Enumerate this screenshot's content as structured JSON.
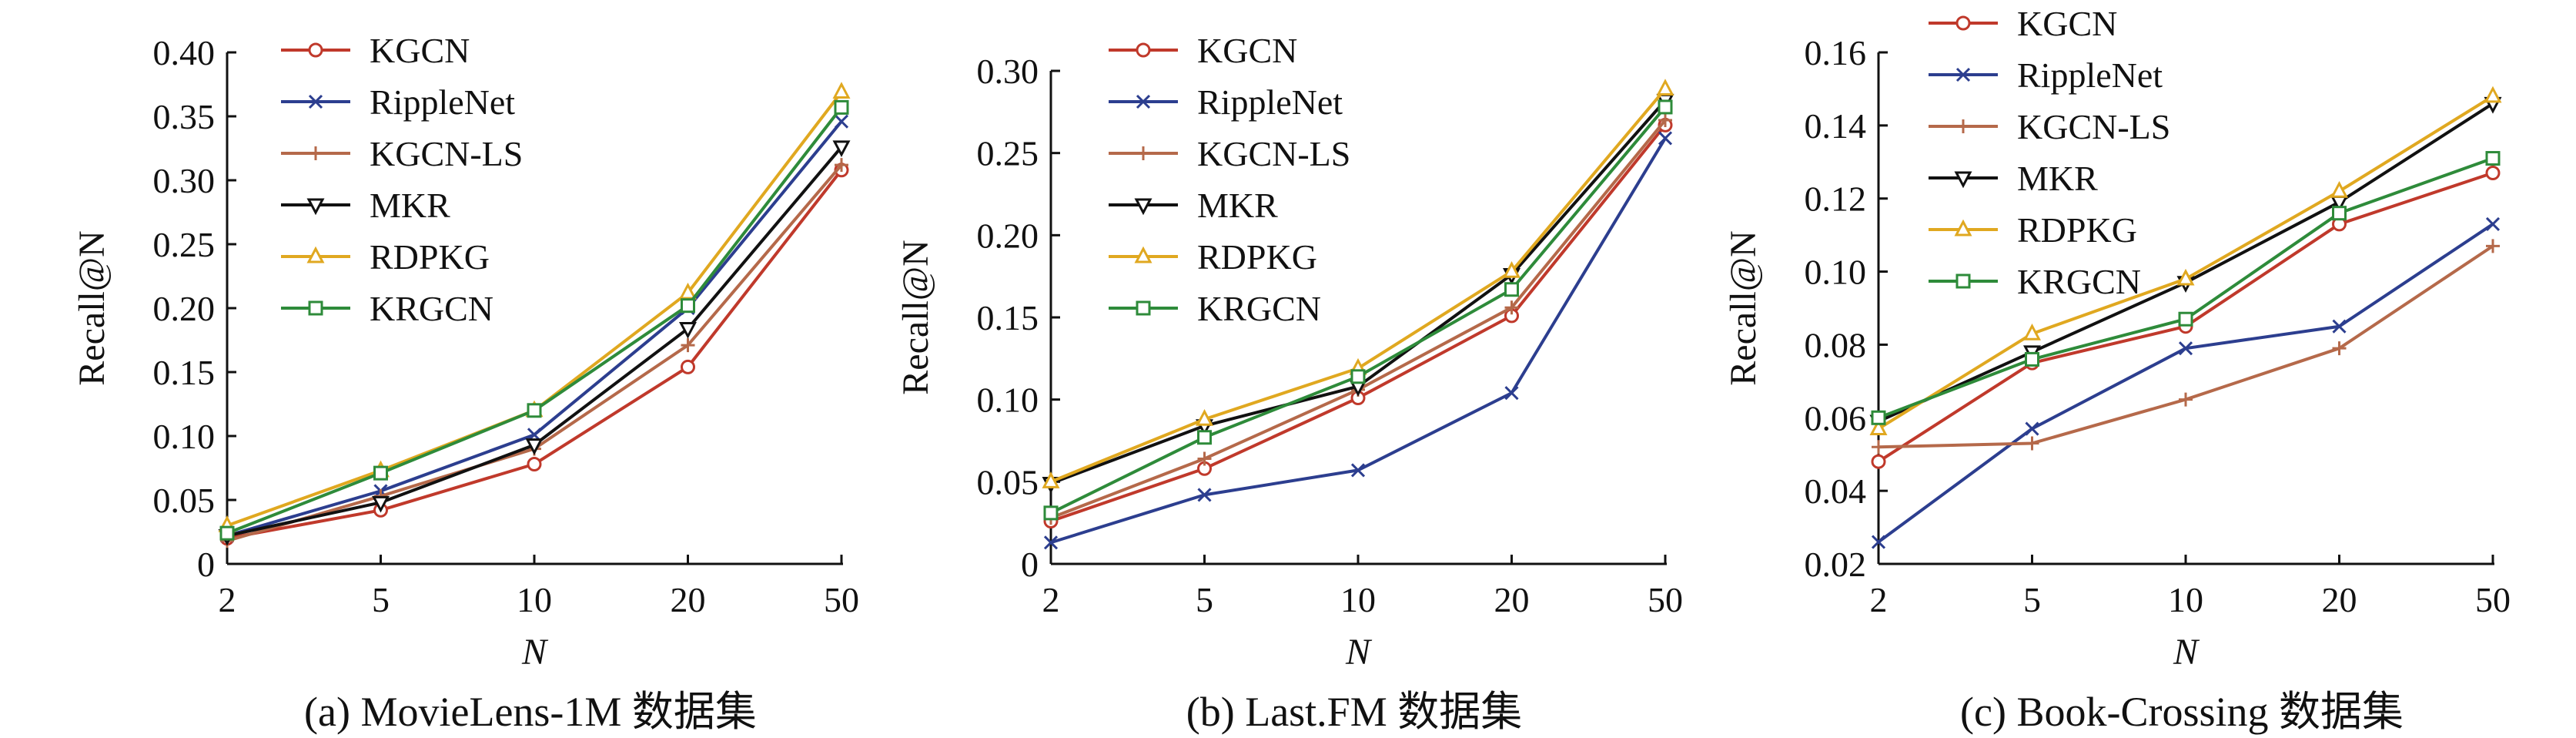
{
  "chart_data": [
    {
      "type": "line",
      "caption": "(a) MovieLens-1M 数据集",
      "xlabel": "N",
      "ylabel": "Recall@N",
      "categories": [
        "2",
        "5",
        "10",
        "20",
        "50"
      ],
      "ylim": [
        0,
        0.4
      ],
      "yticks": [
        0,
        0.05,
        0.1,
        0.15,
        0.2,
        0.25,
        0.3,
        0.35,
        0.4
      ],
      "ytick_labels": [
        "0",
        "0.05",
        "0.10",
        "0.15",
        "0.20",
        "0.25",
        "0.30",
        "0.35",
        "0.40"
      ],
      "grid": false,
      "legend_position": "top-left",
      "series": [
        {
          "name": "KGCN",
          "values": [
            0.02,
            0.042,
            0.078,
            0.154,
            0.308
          ]
        },
        {
          "name": "RippleNet",
          "values": [
            0.022,
            0.057,
            0.101,
            0.2,
            0.346
          ]
        },
        {
          "name": "KGCN-LS",
          "values": [
            0.018,
            0.053,
            0.09,
            0.171,
            0.312
          ]
        },
        {
          "name": "MKR",
          "values": [
            0.022,
            0.048,
            0.093,
            0.184,
            0.326
          ]
        },
        {
          "name": "RDPKG",
          "values": [
            0.03,
            0.073,
            0.12,
            0.212,
            0.369
          ]
        },
        {
          "name": "KRGCN",
          "values": [
            0.024,
            0.071,
            0.12,
            0.202,
            0.357
          ]
        }
      ]
    },
    {
      "type": "line",
      "caption": "(b) Last.FM 数据集",
      "xlabel": "N",
      "ylabel": "Recall@N",
      "categories": [
        "2",
        "5",
        "10",
        "20",
        "50"
      ],
      "ylim": [
        0,
        0.3
      ],
      "yticks": [
        0,
        0.05,
        0.1,
        0.15,
        0.2,
        0.25,
        0.3
      ],
      "ytick_labels": [
        "0",
        "0.05",
        "0.10",
        "0.15",
        "0.20",
        "0.25",
        "0.30"
      ],
      "grid": false,
      "legend_position": "top-left",
      "series": [
        {
          "name": "KGCN",
          "values": [
            0.026,
            0.058,
            0.101,
            0.151,
            0.267
          ]
        },
        {
          "name": "RippleNet",
          "values": [
            0.013,
            0.042,
            0.057,
            0.104,
            0.259
          ]
        },
        {
          "name": "KGCN-LS",
          "values": [
            0.028,
            0.064,
            0.106,
            0.156,
            0.27
          ]
        },
        {
          "name": "MKR",
          "values": [
            0.049,
            0.084,
            0.108,
            0.176,
            0.282
          ]
        },
        {
          "name": "RDPKG",
          "values": [
            0.05,
            0.088,
            0.119,
            0.178,
            0.289
          ]
        },
        {
          "name": "KRGCN",
          "values": [
            0.031,
            0.077,
            0.114,
            0.167,
            0.278
          ]
        }
      ]
    },
    {
      "type": "line",
      "caption": "(c) Book-Crossing 数据集",
      "xlabel": "N",
      "ylabel": "Recall@N",
      "categories": [
        "2",
        "5",
        "10",
        "20",
        "50"
      ],
      "ylim": [
        0.02,
        0.16
      ],
      "yticks": [
        0.02,
        0.04,
        0.06,
        0.08,
        0.1,
        0.12,
        0.14,
        0.16
      ],
      "ytick_labels": [
        "0.02",
        "0.04",
        "0.06",
        "0.08",
        "0.10",
        "0.12",
        "0.14",
        "0.16"
      ],
      "grid": false,
      "legend_position": "top-left",
      "series": [
        {
          "name": "KGCN",
          "values": [
            0.048,
            0.075,
            0.085,
            0.113,
            0.127
          ]
        },
        {
          "name": "RippleNet",
          "values": [
            0.026,
            0.057,
            0.079,
            0.085,
            0.113
          ]
        },
        {
          "name": "KGCN-LS",
          "values": [
            0.052,
            0.053,
            0.065,
            0.079,
            0.107
          ]
        },
        {
          "name": "MKR",
          "values": [
            0.059,
            0.078,
            0.097,
            0.119,
            0.146
          ]
        },
        {
          "name": "RDPKG",
          "values": [
            0.057,
            0.083,
            0.098,
            0.122,
            0.148
          ]
        },
        {
          "name": "KRGCN",
          "values": [
            0.06,
            0.076,
            0.087,
            0.116,
            0.131
          ]
        }
      ]
    }
  ],
  "series_styles": [
    {
      "name": "KGCN",
      "color": "#c0392b",
      "marker": "circle"
    },
    {
      "name": "RippleNet",
      "color": "#2c3e8f",
      "marker": "x"
    },
    {
      "name": "KGCN-LS",
      "color": "#b5694a",
      "marker": "plus"
    },
    {
      "name": "MKR",
      "color": "#111111",
      "marker": "triangle-down"
    },
    {
      "name": "RDPKG",
      "color": "#e0a820",
      "marker": "triangle-up"
    },
    {
      "name": "KRGCN",
      "color": "#2e8b3a",
      "marker": "square"
    }
  ]
}
